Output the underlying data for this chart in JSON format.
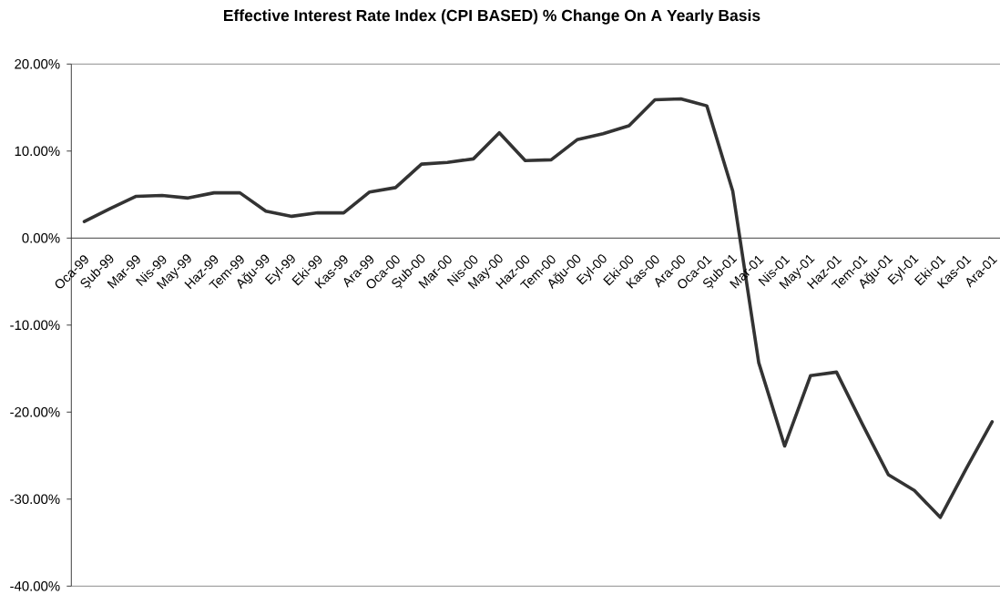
{
  "chart_data": {
    "type": "line",
    "title": "Effective Interest Rate Index (CPI BASED) % Change On A Yearly Basis",
    "categories": [
      "Oca-99",
      "Şub-99",
      "Mar-99",
      "Nis-99",
      "May-99",
      "Haz-99",
      "Tem-99",
      "Ağu-99",
      "Eyl-99",
      "Eki-99",
      "Kas-99",
      "Ara-99",
      "Oca-00",
      "Şub-00",
      "Mar-00",
      "Nis-00",
      "May-00",
      "Haz-00",
      "Tem-00",
      "Ağu-00",
      "Eyl-00",
      "Eki-00",
      "Kas-00",
      "Ara-00",
      "Oca-01",
      "Şub-01",
      "Mar-01",
      "Nis-01",
      "May-01",
      "Haz-01",
      "Tem-01",
      "Ağu-01",
      "Eyl-01",
      "Eki-01",
      "Kas-01",
      "Ara-01"
    ],
    "values": [
      1.9,
      3.4,
      4.8,
      4.9,
      4.6,
      5.2,
      5.2,
      3.1,
      2.5,
      2.9,
      2.9,
      5.3,
      5.8,
      8.5,
      8.7,
      9.1,
      12.1,
      8.9,
      9.0,
      11.3,
      12.0,
      12.9,
      15.9,
      16.0,
      15.2,
      5.4,
      -14.3,
      -23.9,
      -15.8,
      -15.4,
      -21.4,
      -27.2,
      -29.0,
      -32.1,
      -26.5,
      -21.1
    ],
    "color": "#333333",
    "line_style": "solid",
    "ylim": [
      -40,
      20
    ],
    "yticks": [
      {
        "value": -40,
        "label": "-40.00%"
      },
      {
        "value": -30,
        "label": "-30.00%"
      },
      {
        "value": -20,
        "label": "-20.00%"
      },
      {
        "value": -10,
        "label": "-10.00%"
      },
      {
        "value": 0,
        "label": "0.00%"
      },
      {
        "value": 10,
        "label": "10.00%"
      },
      {
        "value": 20,
        "label": "20.00%"
      }
    ]
  }
}
